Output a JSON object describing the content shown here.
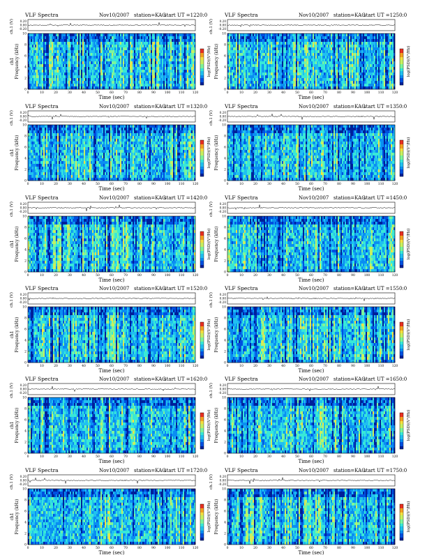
{
  "chart_data": [
    {
      "type": "heatmap",
      "title_left": "VLF Spectra",
      "date": "Nov10/2007",
      "station": "station=KAG",
      "start": "start UT =1220:0",
      "trace_ylabel": "ch.1 (V)",
      "trace_ticks": [
        "0.20",
        "0.00",
        "-0.20"
      ],
      "ylabel": "Frequency (kHz)",
      "xlabel": "Time (sec)",
      "colorbar_label": "log(PSD)(V²/Hz)",
      "xlim": [
        0,
        120
      ],
      "ylim": [
        0,
        10
      ],
      "xticks": [
        0,
        10,
        20,
        30,
        40,
        50,
        60,
        70,
        80,
        90,
        100,
        110,
        120
      ],
      "yticks": [
        0,
        2,
        4,
        6,
        8,
        10
      ],
      "channel_label": "ch1"
    },
    {
      "type": "heatmap",
      "title_left": "VLF Spectra",
      "date": "Nov10/2007",
      "station": "station=KAG",
      "start": "start UT =1250:0",
      "trace_ylabel": "ch.1 (V)",
      "trace_ticks": [
        "0.20",
        "0.00",
        "-0.20"
      ],
      "ylabel": "Frequency (kHz)",
      "xlabel": "Time (sec)",
      "colorbar_label": "log(PSD)(V²/Hz)",
      "xlim": [
        0,
        120
      ],
      "ylim": [
        0,
        10
      ],
      "xticks": [
        0,
        10,
        20,
        30,
        40,
        50,
        60,
        70,
        80,
        90,
        100,
        110,
        120
      ],
      "yticks": [
        0,
        2,
        4,
        6,
        8,
        10
      ],
      "channel_label": ""
    },
    {
      "type": "heatmap",
      "title_left": "VLF Spectra",
      "date": "Nov10/2007",
      "station": "station=KAG",
      "start": "start UT =1320:0",
      "trace_ylabel": "ch.1 (V)",
      "trace_ticks": [
        "0.20",
        "0.00",
        "-0.20"
      ],
      "ylabel": "Frequency (kHz)",
      "xlabel": "Time (sec)",
      "colorbar_label": "log(PSD)(V²/Hz)",
      "xlim": [
        0,
        120
      ],
      "ylim": [
        0,
        10
      ],
      "xticks": [
        0,
        10,
        20,
        30,
        40,
        50,
        60,
        70,
        80,
        90,
        100,
        110,
        120
      ],
      "yticks": [
        0,
        2,
        4,
        6,
        8,
        10
      ],
      "channel_label": "ch1"
    },
    {
      "type": "heatmap",
      "title_left": "VLF Spectra",
      "date": "Nov10/2007",
      "station": "station=KAG",
      "start": "start UT =1350:0",
      "trace_ylabel": "ch.1 (V)",
      "trace_ticks": [
        "0.20",
        "0.00",
        "-0.20"
      ],
      "ylabel": "Frequency (kHz)",
      "xlabel": "Time (sec)",
      "colorbar_label": "log(PSD)(V²/Hz)",
      "xlim": [
        0,
        120
      ],
      "ylim": [
        0,
        10
      ],
      "xticks": [
        0,
        10,
        20,
        30,
        40,
        50,
        60,
        70,
        80,
        90,
        100,
        110,
        120
      ],
      "yticks": [
        0,
        2,
        4,
        6,
        8,
        10
      ],
      "channel_label": ""
    },
    {
      "type": "heatmap",
      "title_left": "VLF Spectra",
      "date": "Nov10/2007",
      "station": "station=KAG",
      "start": "start UT =1420:0",
      "trace_ylabel": "ch.1 (V)",
      "trace_ticks": [
        "0.20",
        "0.00",
        "-0.20"
      ],
      "ylabel": "Frequency (kHz)",
      "xlabel": "Time (sec)",
      "colorbar_label": "log(PSD)(V²/Hz)",
      "xlim": [
        0,
        120
      ],
      "ylim": [
        0,
        10
      ],
      "xticks": [
        0,
        10,
        20,
        30,
        40,
        50,
        60,
        70,
        80,
        90,
        100,
        110,
        120
      ],
      "yticks": [
        0,
        2,
        4,
        6,
        8,
        10
      ],
      "channel_label": "ch1"
    },
    {
      "type": "heatmap",
      "title_left": "VLF Spectra",
      "date": "Nov10/2007",
      "station": "station=KAG",
      "start": "start UT =1450:0",
      "trace_ylabel": "ch.1 (V)",
      "trace_ticks": [
        "0.20",
        "0.00",
        "-0.20"
      ],
      "ylabel": "Frequency (kHz)",
      "xlabel": "Time (sec)",
      "colorbar_label": "log(PSD)(V²/Hz)",
      "xlim": [
        0,
        120
      ],
      "ylim": [
        0,
        10
      ],
      "xticks": [
        0,
        10,
        20,
        30,
        40,
        50,
        60,
        70,
        80,
        90,
        100,
        110,
        120
      ],
      "yticks": [
        0,
        2,
        4,
        6,
        8,
        10
      ],
      "channel_label": ""
    },
    {
      "type": "heatmap",
      "title_left": "VLF Spectra",
      "date": "Nov10/2007",
      "station": "station=KAG",
      "start": "start UT =1520:0",
      "trace_ylabel": "ch.1 (V)",
      "trace_ticks": [
        "0.20",
        "0.00",
        "-0.20"
      ],
      "ylabel": "Frequency (kHz)",
      "xlabel": "Time (sec)",
      "colorbar_label": "log(PSD)(V²/Hz)",
      "xlim": [
        0,
        120
      ],
      "ylim": [
        0,
        10
      ],
      "xticks": [
        0,
        10,
        20,
        30,
        40,
        50,
        60,
        70,
        80,
        90,
        100,
        110,
        120
      ],
      "yticks": [
        0,
        2,
        4,
        6,
        8,
        10
      ],
      "channel_label": "ch1"
    },
    {
      "type": "heatmap",
      "title_left": "VLF Spectra",
      "date": "Nov10/2007",
      "station": "station=KAG",
      "start": "start UT =1550:0",
      "trace_ylabel": "ch.1 (V)",
      "trace_ticks": [
        "0.20",
        "0.00",
        "-0.20"
      ],
      "ylabel": "Frequency (kHz)",
      "xlabel": "Time (sec)",
      "colorbar_label": "log(PSD)(V²/Hz)",
      "xlim": [
        0,
        120
      ],
      "ylim": [
        0,
        10
      ],
      "xticks": [
        0,
        10,
        20,
        30,
        40,
        50,
        60,
        70,
        80,
        90,
        100,
        110,
        120
      ],
      "yticks": [
        0,
        2,
        4,
        6,
        8,
        10
      ],
      "channel_label": ""
    },
    {
      "type": "heatmap",
      "title_left": "VLF Spectra",
      "date": "Nov10/2007",
      "station": "station=KAG",
      "start": "start UT =1620:0",
      "trace_ylabel": "ch.1 (V)",
      "trace_ticks": [
        "0.20",
        "0.00",
        "-0.20"
      ],
      "ylabel": "Frequency (kHz)",
      "xlabel": "Time (sec)",
      "colorbar_label": "log(PSD)(V²/Hz)",
      "xlim": [
        0,
        120
      ],
      "ylim": [
        0,
        10
      ],
      "xticks": [
        0,
        10,
        20,
        30,
        40,
        50,
        60,
        70,
        80,
        90,
        100,
        110,
        120
      ],
      "yticks": [
        0,
        2,
        4,
        6,
        8,
        10
      ],
      "channel_label": "ch1"
    },
    {
      "type": "heatmap",
      "title_left": "VLF Spectra",
      "date": "Nov10/2007",
      "station": "station=KAG",
      "start": "start UT =1650:0",
      "trace_ylabel": "ch.1 (V)",
      "trace_ticks": [
        "0.20",
        "0.00",
        "-0.20"
      ],
      "ylabel": "Frequency (kHz)",
      "xlabel": "Time (sec)",
      "colorbar_label": "log(PSD)(V²/Hz)",
      "xlim": [
        0,
        120
      ],
      "ylim": [
        0,
        10
      ],
      "xticks": [
        0,
        10,
        20,
        30,
        40,
        50,
        60,
        70,
        80,
        90,
        100,
        110,
        120
      ],
      "yticks": [
        0,
        2,
        4,
        6,
        8,
        10
      ],
      "channel_label": ""
    },
    {
      "type": "heatmap",
      "title_left": "VLF Spectra",
      "date": "Nov10/2007",
      "station": "station=KAG",
      "start": "start UT =1720:0",
      "trace_ylabel": "ch.1 (V)",
      "trace_ticks": [
        "0.20",
        "0.00",
        "-0.20"
      ],
      "ylabel": "Frequency (kHz)",
      "xlabel": "Time (sec)",
      "colorbar_label": "log(PSD)(V²/Hz)",
      "xlim": [
        0,
        120
      ],
      "ylim": [
        0,
        10
      ],
      "xticks": [
        0,
        10,
        20,
        30,
        40,
        50,
        60,
        70,
        80,
        90,
        100,
        110,
        120
      ],
      "yticks": [
        0,
        2,
        4,
        6,
        8,
        10
      ],
      "channel_label": "ch1"
    },
    {
      "type": "heatmap",
      "title_left": "VLF Spectra",
      "date": "Nov10/2007",
      "station": "station=KAG",
      "start": "start UT =1750:0",
      "trace_ylabel": "ch.1 (V)",
      "trace_ticks": [
        "0.20",
        "0.00",
        "-0.20"
      ],
      "ylabel": "Frequency (kHz)",
      "xlabel": "Time (sec)",
      "colorbar_label": "log(PSD)(V²/Hz)",
      "xlim": [
        0,
        120
      ],
      "ylim": [
        0,
        10
      ],
      "xticks": [
        0,
        10,
        20,
        30,
        40,
        50,
        60,
        70,
        80,
        90,
        100,
        110,
        120
      ],
      "yticks": [
        0,
        2,
        4,
        6,
        8,
        10
      ],
      "channel_label": ""
    }
  ]
}
